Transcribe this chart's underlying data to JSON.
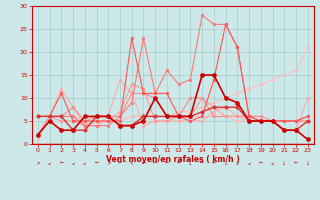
{
  "xlabel": "Vent moyen/en rafales ( km/h )",
  "xlim": [
    -0.5,
    23.5
  ],
  "ylim": [
    0,
    30
  ],
  "yticks": [
    0,
    5,
    10,
    15,
    20,
    25,
    30
  ],
  "xticks": [
    0,
    1,
    2,
    3,
    4,
    5,
    6,
    7,
    8,
    9,
    10,
    11,
    12,
    13,
    14,
    15,
    16,
    17,
    18,
    19,
    20,
    21,
    22,
    23
  ],
  "bg_color": "#cce8e8",
  "grid_color": "#aacccc",
  "lines": [
    {
      "x": [
        0,
        1,
        2,
        3,
        4,
        5,
        6,
        7,
        8,
        9,
        10,
        11,
        12,
        13,
        14,
        15,
        16,
        17,
        18,
        19,
        20,
        21,
        22,
        23
      ],
      "y": [
        1,
        6,
        6,
        6,
        4,
        4,
        5,
        5,
        6,
        6,
        6,
        6,
        6,
        6,
        6,
        6,
        6,
        5,
        5,
        5,
        5,
        5,
        5,
        5
      ],
      "color": "#ffbbbb",
      "lw": 0.7,
      "ms": 2.0
    },
    {
      "x": [
        0,
        1,
        2,
        3,
        4,
        5,
        6,
        7,
        8,
        9,
        10,
        11,
        12,
        13,
        14,
        15,
        16,
        17,
        18,
        19,
        20,
        21,
        22,
        23
      ],
      "y": [
        6,
        6,
        6,
        6,
        5,
        5,
        5,
        5,
        6,
        6,
        6,
        6,
        7,
        7,
        8,
        9,
        10,
        11,
        12,
        13,
        14,
        15,
        16,
        21
      ],
      "color": "#ffbbbb",
      "lw": 0.7,
      "ms": 2.0
    },
    {
      "x": [
        0,
        1,
        2,
        3,
        4,
        5,
        6,
        7,
        8,
        9,
        10,
        11,
        12,
        13,
        14,
        15,
        16,
        17,
        18,
        19,
        20,
        21,
        22,
        23
      ],
      "y": [
        6,
        6,
        12,
        8,
        4,
        4,
        6,
        14,
        11,
        4,
        5,
        5,
        5,
        5,
        5,
        7,
        8,
        6,
        5,
        5,
        5,
        3,
        3,
        10
      ],
      "color": "#ffaaaa",
      "lw": 0.8,
      "ms": 2.0
    },
    {
      "x": [
        0,
        1,
        2,
        3,
        4,
        5,
        6,
        7,
        8,
        9,
        10,
        11,
        12,
        13,
        14,
        15,
        16,
        17,
        18,
        19,
        20,
        21,
        22,
        23
      ],
      "y": [
        6,
        6,
        6,
        8,
        5,
        6,
        6,
        6,
        11,
        11,
        10,
        6,
        6,
        10,
        10,
        6,
        6,
        6,
        6,
        6,
        5,
        5,
        5,
        5
      ],
      "color": "#ff8888",
      "lw": 0.8,
      "ms": 2.0
    },
    {
      "x": [
        0,
        1,
        2,
        3,
        4,
        5,
        6,
        7,
        8,
        9,
        10,
        11,
        12,
        13,
        14,
        15,
        16,
        17,
        18,
        19,
        20,
        21,
        22,
        23
      ],
      "y": [
        6,
        6,
        5,
        5,
        4,
        5,
        5,
        7,
        13,
        12,
        5,
        5,
        6,
        6,
        10,
        8,
        6,
        6,
        6,
        5,
        5,
        5,
        5,
        5
      ],
      "color": "#ff9999",
      "lw": 0.8,
      "ms": 2.0
    },
    {
      "x": [
        0,
        1,
        2,
        3,
        4,
        5,
        6,
        7,
        8,
        9,
        10,
        11,
        12,
        13,
        14,
        15,
        16,
        17,
        18,
        19,
        20,
        21,
        22,
        23
      ],
      "y": [
        2,
        6,
        6,
        6,
        4,
        4,
        4,
        6,
        9,
        23,
        11,
        16,
        13,
        14,
        28,
        26,
        26,
        21,
        6,
        5,
        5,
        5,
        5,
        6
      ],
      "color": "#ff7777",
      "lw": 0.8,
      "ms": 2.0
    },
    {
      "x": [
        0,
        1,
        2,
        3,
        4,
        5,
        6,
        7,
        8,
        9,
        10,
        11,
        12,
        13,
        14,
        15,
        16,
        17,
        18,
        19,
        20,
        21,
        22,
        23
      ],
      "y": [
        6,
        6,
        11,
        5,
        5,
        5,
        5,
        5,
        23,
        11,
        11,
        11,
        6,
        5,
        6,
        14,
        26,
        21,
        6,
        5,
        5,
        5,
        5,
        6
      ],
      "color": "#ff5555",
      "lw": 0.8,
      "ms": 2.0
    },
    {
      "x": [
        0,
        1,
        2,
        3,
        4,
        5,
        6,
        7,
        8,
        9,
        10,
        11,
        12,
        13,
        14,
        15,
        16,
        17,
        18,
        19,
        20,
        21,
        22,
        23
      ],
      "y": [
        6,
        6,
        6,
        3,
        3,
        6,
        6,
        4,
        4,
        6,
        6,
        6,
        6,
        6,
        7,
        8,
        8,
        8,
        5,
        5,
        5,
        3,
        3,
        5
      ],
      "color": "#dd3333",
      "lw": 1.0,
      "ms": 2.5
    },
    {
      "x": [
        0,
        1,
        2,
        3,
        4,
        5,
        6,
        7,
        8,
        9,
        10,
        11,
        12,
        13,
        14,
        15,
        16,
        17,
        18,
        19,
        20,
        21,
        22,
        23
      ],
      "y": [
        2,
        5,
        3,
        3,
        6,
        6,
        6,
        4,
        4,
        5,
        10,
        6,
        6,
        6,
        15,
        15,
        10,
        9,
        5,
        5,
        5,
        3,
        3,
        1
      ],
      "color": "#cc0000",
      "lw": 1.2,
      "ms": 3.0
    }
  ],
  "wind_arrows": [
    "↗",
    "↙",
    "←",
    "↙",
    "↙",
    "←",
    "↗",
    "←",
    "↖",
    "←",
    "←",
    "←",
    "←",
    "↓",
    "←",
    "←",
    "↓",
    "↙",
    "↙",
    "←",
    "↙",
    "↓",
    "←",
    "↓"
  ]
}
